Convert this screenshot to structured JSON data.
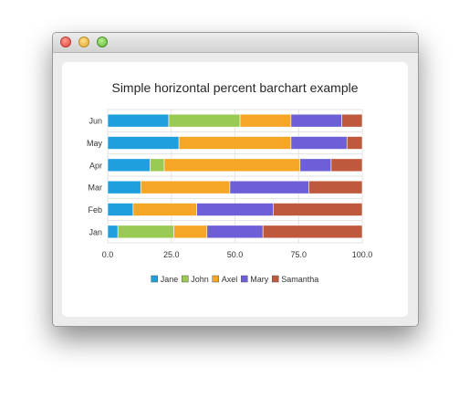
{
  "chart_data": {
    "type": "bar",
    "orientation": "horizontal",
    "stacking": "percent",
    "title": "Simple horizontal percent barchart example",
    "categories": [
      "Jan",
      "Feb",
      "Mar",
      "Apr",
      "May",
      "Jun"
    ],
    "xlim": [
      0,
      100
    ],
    "xticks": [
      "0.0",
      "25.0",
      "50.0",
      "75.0",
      "100.0"
    ],
    "grid": true,
    "legend_position": "bottom",
    "series": [
      {
        "name": "Jane",
        "color": "#209fdf",
        "values": [
          4,
          10,
          13,
          15,
          28,
          24
        ]
      },
      {
        "name": "John",
        "color": "#99ca53",
        "values": [
          22,
          0,
          0,
          5,
          0,
          28
        ]
      },
      {
        "name": "Axel",
        "color": "#f6a625",
        "values": [
          13,
          25,
          35,
          48,
          44,
          20
        ]
      },
      {
        "name": "Mary",
        "color": "#6d5fd5",
        "values": [
          22,
          30,
          31,
          11,
          22,
          20
        ]
      },
      {
        "name": "Samantha",
        "color": "#bf593e",
        "values": [
          39,
          35,
          21,
          11,
          6,
          8
        ]
      }
    ]
  }
}
